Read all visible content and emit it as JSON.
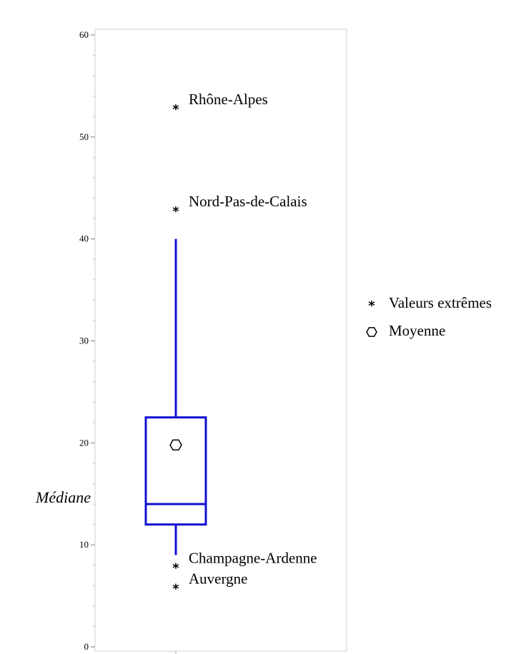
{
  "chart_data": {
    "type": "box",
    "title": "",
    "xlabel": "",
    "ylabel": "",
    "ylim": [
      0,
      60
    ],
    "yticks": [
      0,
      10,
      20,
      30,
      40,
      50,
      60
    ],
    "minor_tick_step": 2,
    "grid": false,
    "box": {
      "q1": 12,
      "median": 14,
      "q3": 22.5,
      "whisker_low": 9,
      "whisker_high": 40,
      "mean": 19.8,
      "color": "#1010d0"
    },
    "outliers": [
      {
        "label": "Rhône-Alpes",
        "value": 53
      },
      {
        "label": "Nord-Pas-de-Calais",
        "value": 43
      },
      {
        "label": "Champagne-Ardenne",
        "value": 8
      },
      {
        "label": "Auvergne",
        "value": 6
      }
    ],
    "annotations": [
      {
        "text": "Médiane",
        "value": 14
      }
    ],
    "legend": {
      "position": "right",
      "items": [
        {
          "symbol": "star",
          "label": "Valeurs extrêmes"
        },
        {
          "symbol": "hexagon",
          "label": "Moyenne"
        }
      ]
    }
  }
}
